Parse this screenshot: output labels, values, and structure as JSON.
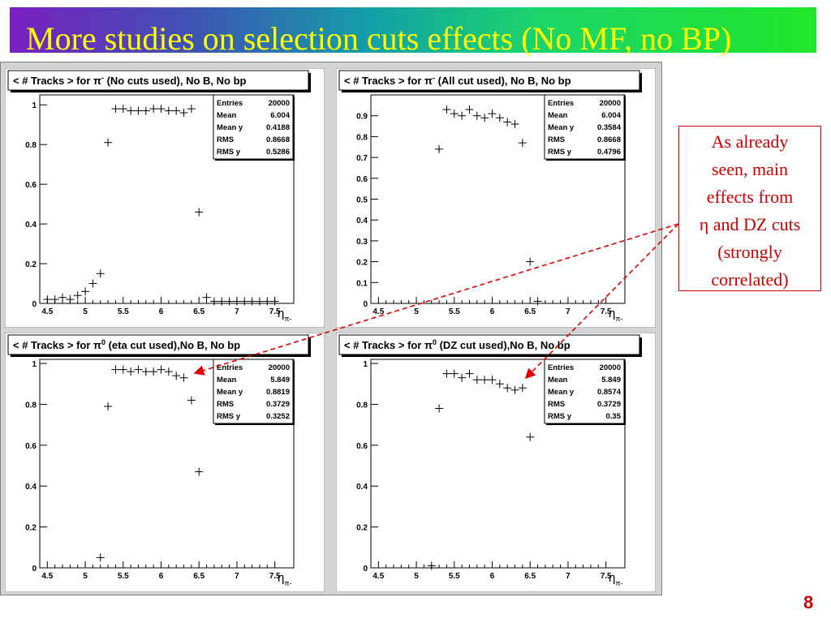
{
  "slide": {
    "title": "More studies on selection cuts effects (No MF, no BP)",
    "page_number": "8",
    "annotation_lines": [
      "As already",
      "seen, main",
      "effects from",
      "η and DZ cuts",
      "(strongly",
      "correlated)"
    ],
    "colors": {
      "title_text": "#ffff00",
      "annotation": "#cc0000",
      "page_number": "#cc0000",
      "frame_bg": "#d4d4d4"
    }
  },
  "stats_labels": [
    "Entries",
    "Mean",
    "Mean y",
    "RMS",
    "RMS y"
  ],
  "chart_data": [
    {
      "type": "scatter",
      "title_text": "< # Tracks > for π",
      "title_sup": "-",
      "title_rest": " (No cuts used), No B, No bp",
      "xlabel": "η",
      "xlabel_sub": "π-",
      "xlim": [
        4.4,
        7.75
      ],
      "ylim": [
        0,
        1.05
      ],
      "xticks": [
        4.5,
        5,
        5.5,
        6,
        6.5,
        7,
        7.5
      ],
      "xtick_labels": [
        "4.5",
        "5",
        "5.5",
        "6",
        "6.5",
        "7",
        "7.5"
      ],
      "yticks": [
        0,
        0.2,
        0.4,
        0.6,
        0.8,
        1
      ],
      "ytick_labels": [
        "0",
        "0.2",
        "0.4",
        "0.6",
        "0.8",
        "1"
      ],
      "stats": [
        "20000",
        "6.004",
        "0.4188",
        "0.8668",
        "0.5286"
      ],
      "points": [
        [
          4.5,
          0.02
        ],
        [
          4.6,
          0.02
        ],
        [
          4.7,
          0.03
        ],
        [
          4.8,
          0.02
        ],
        [
          4.9,
          0.04
        ],
        [
          5.0,
          0.06
        ],
        [
          5.1,
          0.1
        ],
        [
          5.2,
          0.15
        ],
        [
          5.3,
          0.81
        ],
        [
          5.4,
          0.98
        ],
        [
          5.5,
          0.98
        ],
        [
          5.6,
          0.97
        ],
        [
          5.7,
          0.97
        ],
        [
          5.8,
          0.97
        ],
        [
          5.9,
          0.98
        ],
        [
          6.0,
          0.98
        ],
        [
          6.1,
          0.97
        ],
        [
          6.2,
          0.97
        ],
        [
          6.3,
          0.96
        ],
        [
          6.4,
          0.98
        ],
        [
          6.5,
          0.46
        ],
        [
          6.6,
          0.03
        ],
        [
          6.7,
          0.01
        ],
        [
          6.8,
          0.01
        ],
        [
          6.9,
          0.01
        ],
        [
          7.0,
          0.01
        ],
        [
          7.1,
          0.01
        ],
        [
          7.2,
          0.01
        ],
        [
          7.3,
          0.01
        ],
        [
          7.4,
          0.01
        ],
        [
          7.5,
          0.01
        ]
      ]
    },
    {
      "type": "scatter",
      "title_text": "< # Tracks > for π",
      "title_sup": "-",
      "title_rest": " (All cut used), No B, No bp",
      "xlabel": "η",
      "xlabel_sub": "π-",
      "xlim": [
        4.4,
        7.75
      ],
      "ylim": [
        0,
        1.0
      ],
      "xticks": [
        4.5,
        5,
        5.5,
        6,
        6.5,
        7,
        7.5
      ],
      "xtick_labels": [
        "4.5",
        "5",
        "5.5",
        "6",
        "6.5",
        "7",
        "7.5"
      ],
      "yticks": [
        0,
        0.1,
        0.2,
        0.3,
        0.4,
        0.5,
        0.6,
        0.7,
        0.8,
        0.9
      ],
      "ytick_labels": [
        "0",
        "0.1",
        "0.2",
        "0.3",
        "0.4",
        "0.5",
        "0.6",
        "0.7",
        "0.8",
        "0.9"
      ],
      "stats": [
        "20000",
        "6.004",
        "0.3584",
        "0.8668",
        "0.4796"
      ],
      "points": [
        [
          5.3,
          0.74
        ],
        [
          5.4,
          0.93
        ],
        [
          5.5,
          0.91
        ],
        [
          5.6,
          0.9
        ],
        [
          5.7,
          0.93
        ],
        [
          5.8,
          0.9
        ],
        [
          5.9,
          0.89
        ],
        [
          6.0,
          0.91
        ],
        [
          6.1,
          0.89
        ],
        [
          6.2,
          0.87
        ],
        [
          6.3,
          0.86
        ],
        [
          6.4,
          0.77
        ],
        [
          6.5,
          0.2
        ],
        [
          6.6,
          0.01
        ]
      ]
    },
    {
      "type": "scatter",
      "title_text": "< # Tracks > for π",
      "title_sup": "0",
      "title_rest": " (eta cut used),No B, No bp",
      "xlabel": "η",
      "xlabel_sub": "π-",
      "xlim": [
        4.4,
        7.75
      ],
      "ylim": [
        0,
        1.02
      ],
      "xticks": [
        4.5,
        5,
        5.5,
        6,
        6.5,
        7,
        7.5
      ],
      "xtick_labels": [
        "4.5",
        "5",
        "5.5",
        "6",
        "6.5",
        "7",
        "7.5"
      ],
      "yticks": [
        0,
        0.2,
        0.4,
        0.6,
        0.8,
        1
      ],
      "ytick_labels": [
        "0",
        "0.2",
        "0.4",
        "0.6",
        "0.8",
        "1"
      ],
      "stats": [
        "20000",
        "5.849",
        "0.8819",
        "0.3729",
        "0.3252"
      ],
      "points": [
        [
          5.2,
          0.05
        ],
        [
          5.3,
          0.79
        ],
        [
          5.4,
          0.97
        ],
        [
          5.5,
          0.97
        ],
        [
          5.6,
          0.96
        ],
        [
          5.7,
          0.97
        ],
        [
          5.8,
          0.96
        ],
        [
          5.9,
          0.96
        ],
        [
          6.0,
          0.97
        ],
        [
          6.1,
          0.96
        ],
        [
          6.2,
          0.94
        ],
        [
          6.3,
          0.93
        ],
        [
          6.4,
          0.82
        ],
        [
          6.5,
          0.47
        ]
      ]
    },
    {
      "type": "scatter",
      "title_text": "< # Tracks > for π",
      "title_sup": "0",
      "title_rest": " (DZ cut used),No B, No bp",
      "xlabel": "η",
      "xlabel_sub": "π-",
      "xlim": [
        4.4,
        7.75
      ],
      "ylim": [
        0,
        1.02
      ],
      "xticks": [
        4.5,
        5,
        5.5,
        6,
        6.5,
        7,
        7.5
      ],
      "xtick_labels": [
        "4.5",
        "5",
        "5.5",
        "6",
        "6.5",
        "7",
        "7.5"
      ],
      "yticks": [
        0,
        0.2,
        0.4,
        0.6,
        0.8,
        1
      ],
      "ytick_labels": [
        "0",
        "0.2",
        "0.4",
        "0.6",
        "0.8",
        "1"
      ],
      "stats": [
        "20000",
        "5.849",
        "0.8574",
        "0.3729",
        "0.35"
      ],
      "points": [
        [
          5.2,
          0.01
        ],
        [
          5.3,
          0.78
        ],
        [
          5.4,
          0.95
        ],
        [
          5.5,
          0.95
        ],
        [
          5.6,
          0.93
        ],
        [
          5.7,
          0.95
        ],
        [
          5.8,
          0.92
        ],
        [
          5.9,
          0.92
        ],
        [
          6.0,
          0.92
        ],
        [
          6.1,
          0.9
        ],
        [
          6.2,
          0.88
        ],
        [
          6.3,
          0.87
        ],
        [
          6.4,
          0.88
        ],
        [
          6.5,
          0.64
        ]
      ]
    }
  ]
}
